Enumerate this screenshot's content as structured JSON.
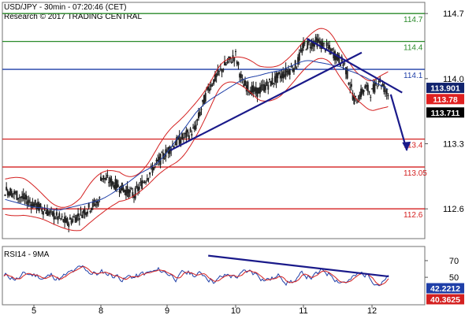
{
  "header": {
    "line1": "USD/JPY - 30min - 07:20:46 (CET)",
    "line2": "Research © 2017 TRADING CENTRAL"
  },
  "chart_data": {
    "type": "line",
    "main": {
      "ylim": [
        112.28,
        114.82
      ],
      "y_ticks": [
        112.6,
        113.3,
        114.0,
        114.7
      ],
      "y_tick_labels": [
        "112.6",
        "113.3",
        "114.0",
        "114.7"
      ],
      "x_days": [
        5,
        8,
        9,
        10,
        11,
        12
      ],
      "x_day_labels": [
        "5",
        "8",
        "9",
        "10",
        "11",
        "12"
      ],
      "levels": [
        {
          "label": "114.7",
          "value": 114.7,
          "color": "#2a8a2a"
        },
        {
          "label": "114.4",
          "value": 114.4,
          "color": "#2a8a2a"
        },
        {
          "label": "114.1",
          "value": 114.1,
          "color": "#1f3fa8"
        },
        {
          "label": "113.4",
          "value": 113.35,
          "color": "#d42020"
        },
        {
          "label": "113.05",
          "value": 113.05,
          "color": "#d42020"
        },
        {
          "label": "112.6",
          "value": 112.6,
          "color": "#d42020"
        }
      ],
      "price_badges": [
        {
          "label": "113.901",
          "value": 113.901,
          "bg": "#12246e"
        },
        {
          "label": "113.78",
          "value": 113.78,
          "bg": "#e02020"
        },
        {
          "label": "113.711",
          "value": 113.711,
          "bg": "#000000"
        }
      ],
      "trendlines": [
        {
          "from": [
            9.05,
            113.23
          ],
          "to": [
            11.85,
            114.28
          ]
        },
        {
          "from": [
            11.05,
            114.43
          ],
          "to": [
            12.45,
            113.85
          ]
        }
      ],
      "projection_arrow": {
        "from": [
          12.28,
          113.83
        ],
        "to": [
          12.52,
          113.28
        ]
      }
    },
    "rsi": {
      "title": "RSI14 - 9MA",
      "ylim": [
        17,
        87
      ],
      "y_ticks": [
        50,
        70
      ],
      "y_tick_labels": [
        "50",
        "70"
      ],
      "badges": [
        {
          "label": "42.2212",
          "value": 42.2212,
          "bg": "#1f3fa8"
        },
        {
          "label": "40.3625",
          "value": 40.3625,
          "bg": "#d42020"
        }
      ],
      "trendline": {
        "from": [
          9.6,
          76
        ],
        "to": [
          12.25,
          51
        ]
      }
    }
  }
}
